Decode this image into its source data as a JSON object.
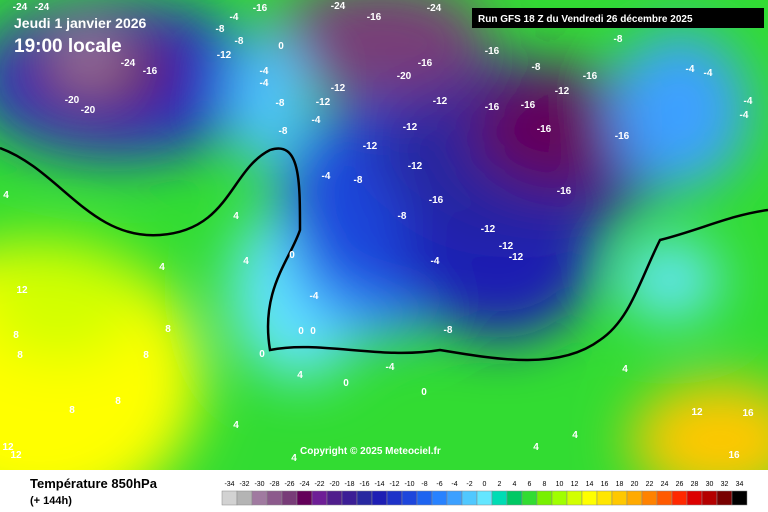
{
  "header": {
    "date": "Jeudi 1 janvier 2026",
    "time": "19:00 locale",
    "run": "Run GFS 18 Z du Vendredi 26 décembre 2025"
  },
  "copyright": "Copyright © 2025 Meteociel.fr",
  "footer": {
    "title": "Température 850hPa",
    "lead": "(+ 144h)"
  },
  "scale": {
    "labels": [
      -34,
      -32,
      -30,
      -28,
      -26,
      -24,
      -22,
      -20,
      -18,
      -16,
      -14,
      -12,
      -10,
      -8,
      -6,
      -4,
      -2,
      0,
      2,
      4,
      6,
      8,
      10,
      12,
      14,
      16,
      18,
      20,
      22,
      24,
      26,
      28,
      30,
      32,
      34
    ],
    "colors": [
      "#d2d2d2",
      "#b4b4b4",
      "#a07aa0",
      "#8c5a8c",
      "#783c78",
      "#64005a",
      "#6e1e96",
      "#501e8c",
      "#3c1e96",
      "#2828a0",
      "#1e1eb4",
      "#1e32c8",
      "#1e46dc",
      "#1e64f0",
      "#2882ff",
      "#3ca0ff",
      "#50c8ff",
      "#64e6ff",
      "#00dcb4",
      "#00c864",
      "#32dc32",
      "#78f000",
      "#a0ff00",
      "#d2ff00",
      "#ffff00",
      "#ffe600",
      "#ffc800",
      "#ffaa00",
      "#ff8200",
      "#ff5a00",
      "#ff2800",
      "#dc0000",
      "#b40000",
      "#780000",
      "#000000"
    ]
  },
  "isotherm_labels": [
    "-24",
    "-24",
    "-16",
    "-24",
    "-16",
    "-24",
    "-4",
    "-8",
    "-12",
    "-8",
    "0",
    "-4",
    "-4",
    "-24",
    "-16",
    "-20",
    "-20",
    "-16",
    "-20",
    "-16",
    "-8",
    "-16",
    "-12",
    "-16",
    "-16",
    "-16",
    "-16",
    "-16",
    "-12",
    "-12",
    "-12",
    "-12",
    "-12",
    "-8",
    "-4",
    "-8",
    "-4",
    "-8",
    "-8",
    "-16",
    "-12",
    "-12",
    "-12",
    "-12",
    "-8",
    "-4",
    "-4",
    "-4",
    "-4",
    "4",
    "4",
    "4",
    "0",
    "-4",
    "0",
    "0",
    "0",
    "-4",
    "-8",
    "-4",
    "4",
    "0",
    "0",
    "4",
    "4",
    "4",
    "12",
    "16",
    "16",
    "12",
    "12",
    "12",
    "8",
    "8",
    "8",
    "8",
    "8",
    "8",
    "4",
    "4",
    "4"
  ]
}
